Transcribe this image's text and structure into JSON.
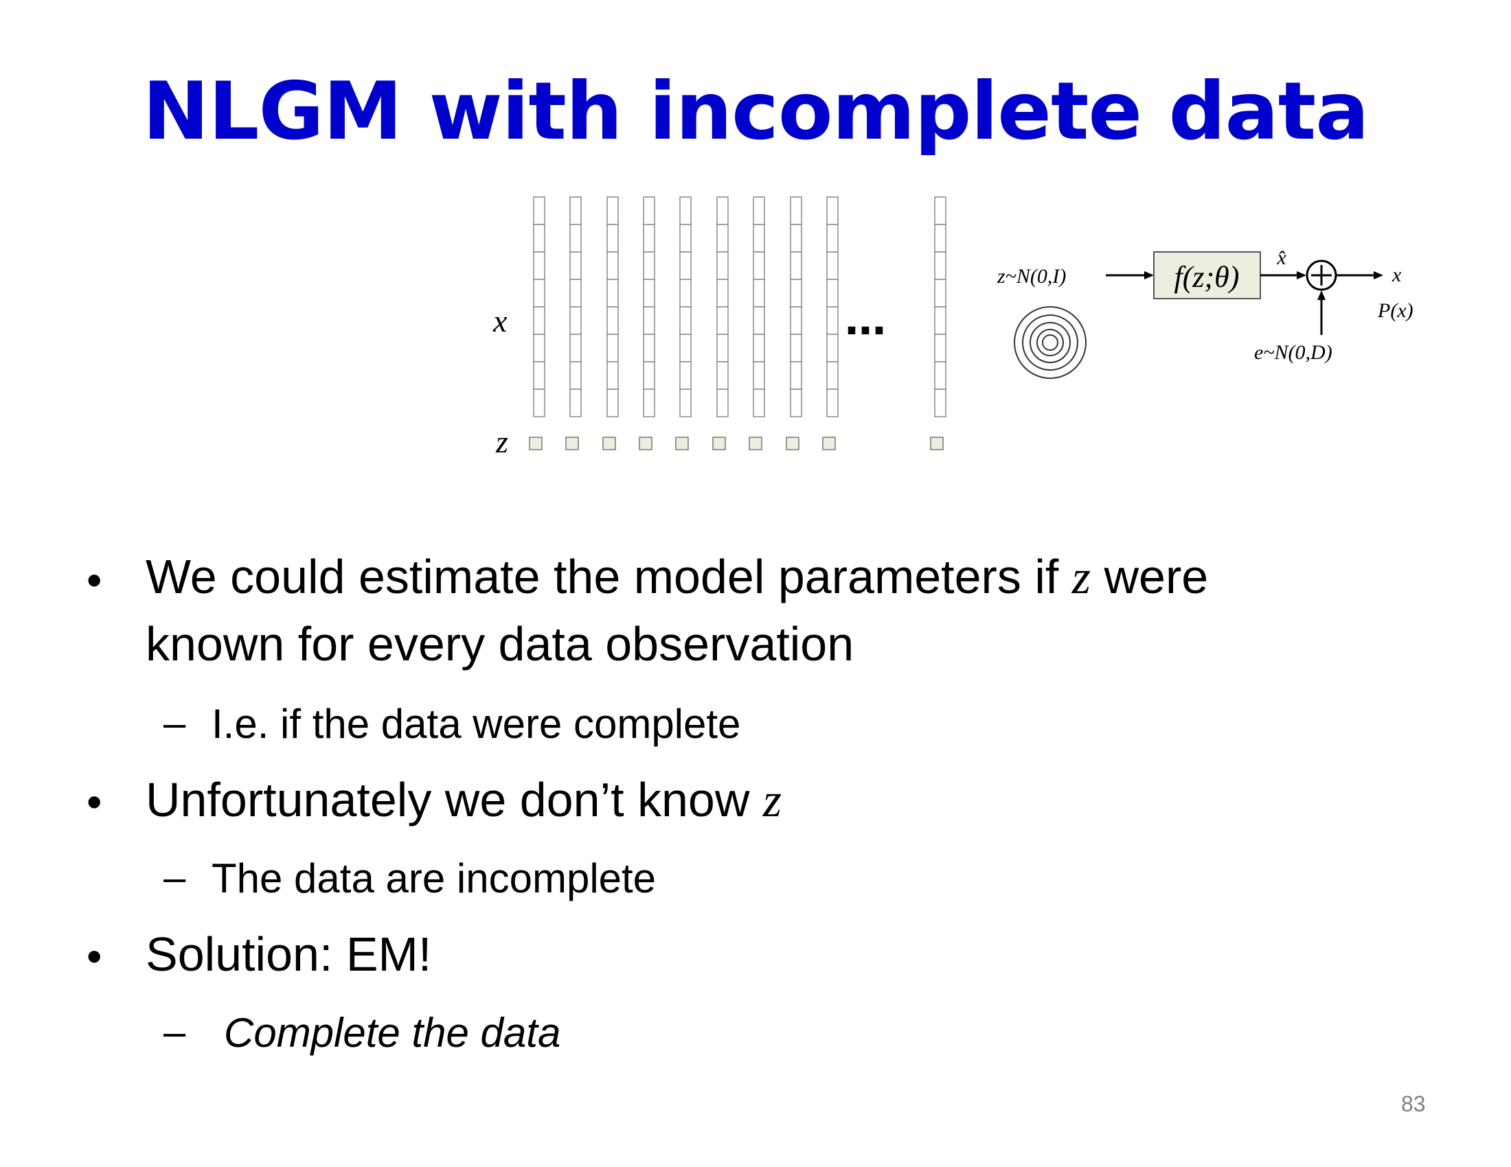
{
  "slide": {
    "title": "NLGM with incomplete data",
    "page_number": "83",
    "title_color": "#0000CC"
  },
  "figure": {
    "x_label": "x",
    "z_label": "z",
    "ellipsis": "…",
    "column_count_visible": 10,
    "cells_per_column": 8,
    "model": {
      "prior": "z~N(0,I)",
      "function": "f(z;θ)",
      "xhat": "x̂",
      "plus": "+",
      "output": "x",
      "px": "P(x)",
      "noise": "e~N(0,D)",
      "box_fill": "#EEEEE0"
    }
  },
  "bullets": [
    {
      "text_before": "We could estimate the model parameters if ",
      "math": "z",
      "text_after": " were",
      "line2": "known for every data observation",
      "sub": "I.e. if the data were complete"
    },
    {
      "text_before": "Unfortunately we don’t know ",
      "math": "z",
      "sub": "The data are incomplete"
    },
    {
      "text": "Solution:  EM!",
      "sub": "Complete the data"
    }
  ]
}
